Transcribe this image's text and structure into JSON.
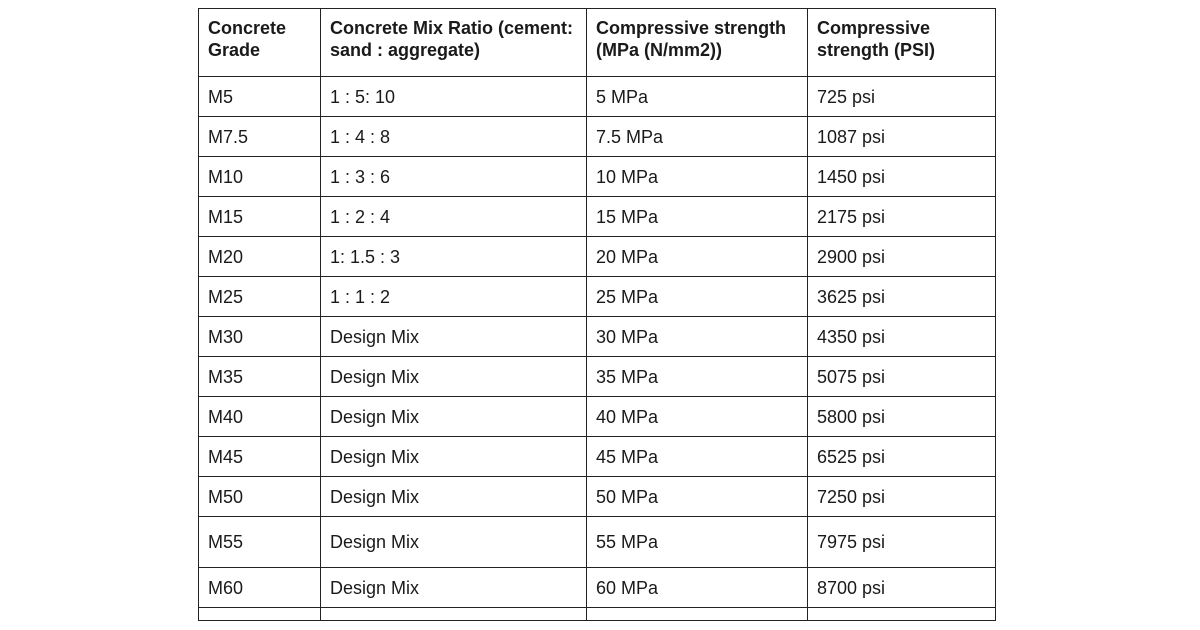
{
  "table": {
    "headers": [
      "Concrete Grade",
      "Concrete Mix Ratio (cement: sand : aggregate)",
      "Compressive strength (MPa (N/mm2))",
      "Compressive strength (PSI)"
    ],
    "rows": [
      [
        "M5",
        "1 : 5: 10",
        "5 MPa",
        "725 psi"
      ],
      [
        "M7.5",
        "1 : 4 : 8",
        "7.5 MPa",
        "1087 psi"
      ],
      [
        "M10",
        "1 : 3 : 6",
        "10 MPa",
        "1450 psi"
      ],
      [
        "M15",
        "1 : 2 : 4",
        "15 MPa",
        "2175 psi"
      ],
      [
        "M20",
        "1: 1.5 : 3",
        "20 MPa",
        "2900 psi"
      ],
      [
        "M25",
        "1 : 1 : 2",
        "25 MPa",
        "3625 psi"
      ],
      [
        "M30",
        "Design Mix",
        "30 MPa",
        "4350 psi"
      ],
      [
        "M35",
        "Design Mix",
        "35 MPa",
        "5075 psi"
      ],
      [
        "M40",
        "Design Mix",
        "40 MPa",
        "5800 psi"
      ],
      [
        "M45",
        "Design Mix",
        "45 MPa",
        "6525 psi"
      ],
      [
        "M50",
        "Design Mix",
        "50 MPa",
        "7250 psi"
      ],
      [
        "M55",
        "Design Mix",
        "55 MPa",
        "7975 psi"
      ],
      [
        "M60",
        "Design Mix",
        "60 MPa",
        "8700 psi"
      ]
    ]
  }
}
